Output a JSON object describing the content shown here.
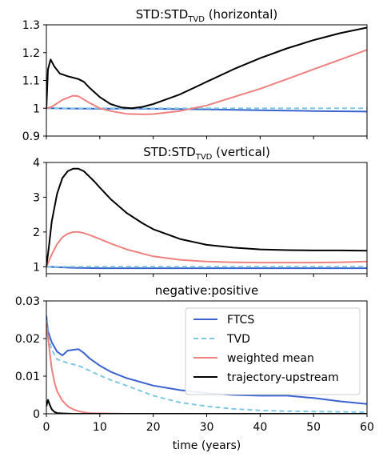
{
  "colors": {
    "FTCS": "#3a63cf",
    "TVD": "#7ec8e3",
    "weighted mean": "#ee8080",
    "trajectory-upstream": "#000000"
  },
  "chart_data": [
    {
      "type": "line",
      "title_main": "STD:STD",
      "title_sub": "TVD",
      "title_tail": " (horizontal)",
      "xlim": [
        0,
        60
      ],
      "ylim": [
        0.9,
        1.3
      ],
      "yticks": [
        "0.9",
        "1",
        "1.1",
        "1.2",
        "1.3"
      ],
      "ytick_values": [
        0.9,
        1.0,
        1.1,
        1.2,
        1.3
      ],
      "series": [
        {
          "name": "FTCS",
          "x": [
            0,
            5,
            10,
            15,
            20,
            30,
            40,
            50,
            60
          ],
          "y": [
            1.0,
            0.999,
            0.998,
            0.999,
            0.998,
            0.996,
            0.993,
            0.99,
            0.988
          ]
        },
        {
          "name": "TVD",
          "x": [
            0,
            10,
            20,
            30,
            40,
            50,
            60
          ],
          "y": [
            1.0,
            1.0,
            1.0,
            1.0,
            1.0,
            1.0,
            1.0
          ]
        },
        {
          "name": "weighted mean",
          "x": [
            0,
            1,
            3,
            5,
            6,
            8,
            10,
            12,
            15,
            18,
            20,
            25,
            30,
            35,
            40,
            45,
            50,
            55,
            60
          ],
          "y": [
            1.0,
            1.005,
            1.03,
            1.045,
            1.043,
            1.02,
            1.0,
            0.99,
            0.98,
            0.978,
            0.979,
            0.99,
            1.01,
            1.04,
            1.07,
            1.105,
            1.14,
            1.175,
            1.21
          ]
        },
        {
          "name": "trajectory-upstream",
          "x": [
            0,
            0.3,
            0.8,
            1.5,
            2.5,
            4,
            5,
            6,
            7,
            8,
            10,
            12,
            14,
            16,
            18,
            20,
            25,
            30,
            35,
            40,
            45,
            50,
            55,
            60
          ],
          "y": [
            1.0,
            1.14,
            1.175,
            1.15,
            1.125,
            1.115,
            1.11,
            1.105,
            1.095,
            1.075,
            1.04,
            1.015,
            1.003,
            1.0,
            1.005,
            1.015,
            1.05,
            1.095,
            1.14,
            1.18,
            1.215,
            1.245,
            1.27,
            1.29
          ]
        }
      ]
    },
    {
      "type": "line",
      "title_main": "STD:STD",
      "title_sub": "TVD",
      "title_tail": " (vertical)",
      "xlim": [
        0,
        60
      ],
      "ylim": [
        0.8,
        4.0
      ],
      "yticks": [
        "1",
        "2",
        "3",
        "4"
      ],
      "ytick_values": [
        1,
        2,
        3,
        4
      ],
      "series": [
        {
          "name": "FTCS",
          "x": [
            0,
            5,
            10,
            20,
            30,
            40,
            50,
            60
          ],
          "y": [
            1.0,
            0.97,
            0.96,
            0.96,
            0.96,
            0.96,
            0.96,
            0.96
          ]
        },
        {
          "name": "TVD",
          "x": [
            0,
            10,
            20,
            30,
            40,
            50,
            60
          ],
          "y": [
            1.0,
            1.0,
            1.0,
            1.0,
            1.0,
            1.0,
            1.0
          ]
        },
        {
          "name": "weighted mean",
          "x": [
            0,
            1,
            2,
            3,
            4,
            5,
            6,
            7,
            8,
            10,
            12,
            15,
            20,
            25,
            30,
            35,
            40,
            45,
            50,
            55,
            60
          ],
          "y": [
            1.0,
            1.35,
            1.65,
            1.85,
            1.95,
            2.0,
            2.0,
            1.97,
            1.92,
            1.8,
            1.67,
            1.5,
            1.3,
            1.2,
            1.15,
            1.13,
            1.12,
            1.12,
            1.12,
            1.13,
            1.15
          ]
        },
        {
          "name": "trajectory-upstream",
          "x": [
            0,
            0.5,
            1,
            2,
            3,
            4,
            5,
            6,
            7,
            8,
            9,
            10,
            12,
            15,
            18,
            20,
            25,
            30,
            35,
            40,
            45,
            50,
            55,
            60
          ],
          "y": [
            1.0,
            1.6,
            2.3,
            3.1,
            3.55,
            3.75,
            3.82,
            3.82,
            3.75,
            3.6,
            3.45,
            3.28,
            2.95,
            2.55,
            2.25,
            2.08,
            1.8,
            1.63,
            1.55,
            1.5,
            1.48,
            1.47,
            1.47,
            1.46
          ]
        }
      ]
    },
    {
      "type": "line",
      "title": "negative:positive",
      "xlabel": "time (years)",
      "xlim": [
        0,
        60
      ],
      "ylim": [
        0,
        0.03
      ],
      "xticks": [
        "0",
        "10",
        "20",
        "30",
        "40",
        "50",
        "60"
      ],
      "xtick_values": [
        0,
        10,
        20,
        30,
        40,
        50,
        60
      ],
      "yticks": [
        "0",
        "0.01",
        "0.02",
        "0.03"
      ],
      "ytick_values": [
        0,
        0.01,
        0.02,
        0.03
      ],
      "legend_position": "top-right",
      "legend": [
        "FTCS",
        "TVD",
        "weighted mean",
        "trajectory-upstream"
      ],
      "series": [
        {
          "name": "FTCS",
          "x": [
            0,
            0.3,
            1,
            2,
            3,
            4,
            5,
            6,
            7,
            8,
            10,
            12,
            15,
            20,
            25,
            30,
            35,
            40,
            45,
            50,
            55,
            60
          ],
          "y": [
            0.026,
            0.022,
            0.019,
            0.0165,
            0.0155,
            0.0168,
            0.017,
            0.0172,
            0.0162,
            0.0148,
            0.0128,
            0.0112,
            0.0095,
            0.0075,
            0.0063,
            0.0055,
            0.005,
            0.0048,
            0.0048,
            0.0042,
            0.0033,
            0.0026
          ]
        },
        {
          "name": "TVD",
          "x": [
            0,
            0.3,
            1,
            2,
            4,
            6,
            8,
            10,
            12,
            15,
            20,
            25,
            30,
            35,
            40,
            45,
            50,
            55,
            60
          ],
          "y": [
            0.025,
            0.021,
            0.017,
            0.0145,
            0.0135,
            0.0128,
            0.0115,
            0.0102,
            0.009,
            0.0075,
            0.0048,
            0.003,
            0.002,
            0.0013,
            0.0009,
            0.0007,
            0.0006,
            0.0005,
            0.0004
          ]
        },
        {
          "name": "weighted mean",
          "x": [
            0,
            0.5,
            1,
            1.5,
            2,
            3,
            4,
            5,
            6,
            7,
            8,
            10,
            15,
            20,
            60
          ],
          "y": [
            0.024,
            0.018,
            0.012,
            0.0085,
            0.006,
            0.0035,
            0.002,
            0.0012,
            0.0007,
            0.0004,
            0.0002,
            0.0001,
            0.0,
            0.0,
            0.0
          ]
        },
        {
          "name": "trajectory-upstream",
          "x": [
            0,
            0.3,
            0.6,
            1,
            1.5,
            2,
            3,
            5,
            10,
            60
          ],
          "y": [
            0.002,
            0.0037,
            0.0025,
            0.0012,
            0.0005,
            0.0002,
            0.0001,
            0.0,
            0.0,
            0.0
          ]
        }
      ]
    }
  ]
}
